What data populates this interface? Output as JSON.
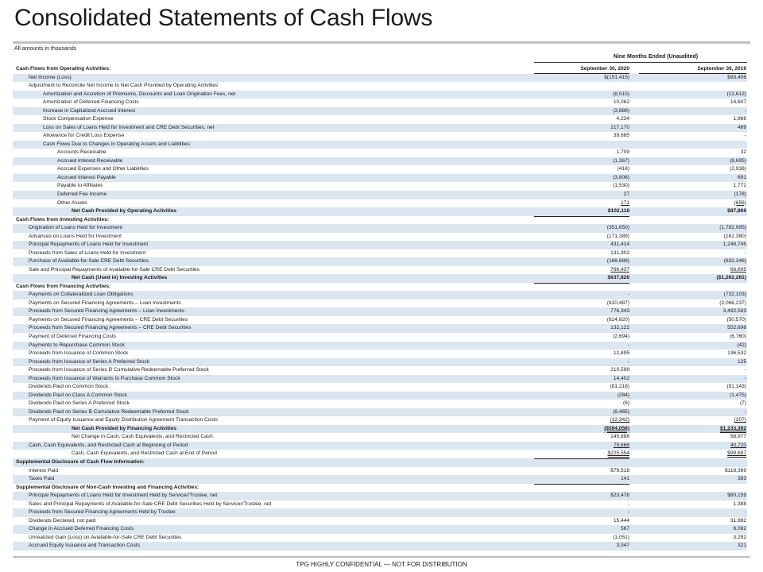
{
  "title": "Consolidated Statements of Cash Flows",
  "note": "All amounts in thousands",
  "period_header": "Nine Months Ended  (Unaudited)",
  "footer": "TPG HIGHLY CONFIDENTIAL — NOT FOR DISTRIBUTION",
  "rows": [
    {
      "label": "Cash Flows from Operating Activities:",
      "c1": "September 30, 2020",
      "c2": "September 30, 2019",
      "indent": 0,
      "style": "hdrcol"
    },
    {
      "label": "Net Income (Loss)",
      "c1": "$(151,415)",
      "c2": "$93,406",
      "indent": 1
    },
    {
      "label": "Adjustment to Reconcile Net Income to Net Cash Provided by Operating Activities:",
      "c1": "",
      "c2": "",
      "indent": 1
    },
    {
      "label": "Amortization and Accretion of Premiums, Discounts and Loan Origination Fees, net",
      "c1": "(8,515)",
      "c2": "(12,612)",
      "indent": 2
    },
    {
      "label": "Amortization of Deferred Financing Costs",
      "c1": "10,062",
      "c2": "14,607",
      "indent": 2
    },
    {
      "label": "Increase in Capitalized Accrued Interest",
      "c1": "(3,889)",
      "c2": "-",
      "indent": 2
    },
    {
      "label": "Stock Compensation Expense",
      "c1": "4,234",
      "c2": "1,966",
      "indent": 2
    },
    {
      "label": "Loss on Sales of Loans Held for Investment and CRE Debt Securities, net",
      "c1": "217,170",
      "c2": "469",
      "indent": 2
    },
    {
      "label": "Allowance for Credit Loss Expense",
      "c1": "39,685",
      "c2": "-",
      "indent": 2
    },
    {
      "label": "Cash Flows Due to Changes in Operating Assets and Liabilities:",
      "c1": "",
      "c2": "",
      "indent": 2
    },
    {
      "label": "Accounts Receivable",
      "c1": "1,709",
      "c2": "32",
      "indent": 3
    },
    {
      "label": "Accrued Interest Receivable",
      "c1": "(1,367)",
      "c2": "(8,695)",
      "indent": 3
    },
    {
      "label": "Accrued Expenses and Other Liabilities",
      "c1": "(416)",
      "c2": "(2,936)",
      "indent": 3
    },
    {
      "label": "Accrued Interest Payable",
      "c1": "(3,808)",
      "c2": "691",
      "indent": 3
    },
    {
      "label": "Payable to Affiliates",
      "c1": "(1,530)",
      "c2": "1,772",
      "indent": 3
    },
    {
      "label": "Deferred Fee Income",
      "c1": "27",
      "c2": "(178)",
      "indent": 3
    },
    {
      "label": "Other Assets",
      "c1": "171",
      "c2": "(656)",
      "indent": 3,
      "style": "u"
    },
    {
      "label": "Net Cash Provided by Operating Activities",
      "c1": "$102,118",
      "c2": "$87,866",
      "indent": 4,
      "style": "bold"
    },
    {
      "label": "Cash Flows from Investing Activities:",
      "c1": "",
      "c2": "",
      "indent": 0,
      "style": "header"
    },
    {
      "label": "Origination of Loans Held for Investment",
      "c1": "(351,650)",
      "c2": "(1,782,995)",
      "indent": 1
    },
    {
      "label": "Advances on Loans Held for Investment",
      "c1": "(171,389)",
      "c2": "(162,380)",
      "indent": 1
    },
    {
      "label": "Principal Repayments of Loans Held for Investment",
      "c1": "431,414",
      "c2": "1,248,745",
      "indent": 1
    },
    {
      "label": "Proceeds from Sales of Loans Held for Investment",
      "c1": "131,902",
      "c2": "-",
      "indent": 1
    },
    {
      "label": "Purchase of Available-for-Sale CRE Debt Securities",
      "c1": "(168,888)",
      "c2": "(632,346)",
      "indent": 1
    },
    {
      "label": "Sale and Principal Repayments of Available-for-Sale CRE Debt Securities",
      "c1": "766,437",
      "c2": "66,695",
      "indent": 1,
      "style": "u"
    },
    {
      "label": "Net Cash (Used in) Investing Activities",
      "c1": "$637,826",
      "c2": "($1,262,281)",
      "indent": 4,
      "style": "bold"
    },
    {
      "label": "Cash Flows from Financing Activities:",
      "c1": "",
      "c2": "",
      "indent": 0,
      "style": "header"
    },
    {
      "label": "Payments on Collateralized Loan Obligations",
      "c1": "-",
      "c2": "(732,103)",
      "indent": 1
    },
    {
      "label": "Payments on Secured Financing Agreements – Loan Investments",
      "c1": "(810,487)",
      "c2": "(2,066,237)",
      "indent": 1
    },
    {
      "label": "Proceeds from Secured Financing Agreements – Loan Investments",
      "c1": "776,343",
      "c2": "3,492,583",
      "indent": 1
    },
    {
      "label": "Payments on Secured Financing Agreements – CRE Debt Securities",
      "c1": "(824,920)",
      "c2": "(50,570)",
      "indent": 1
    },
    {
      "label": "Proceeds from Secured Financing Agreements – CRE Debt Securities",
      "c1": "132,122",
      "c2": "552,696",
      "indent": 1
    },
    {
      "label": "Payment of Deferred Financing Costs",
      "c1": "(2,694)",
      "c2": "(6,760)",
      "indent": 1
    },
    {
      "label": "Payments to Repurchase Common Stock",
      "c1": "-",
      "c2": "(42)",
      "indent": 1
    },
    {
      "label": "Proceeds from Issuance of Common Stock",
      "c1": "12,895",
      "c2": "136,532",
      "indent": 1
    },
    {
      "label": "Proceeds from Issuance of Series A Preferred Stock",
      "c1": "-",
      "c2": "125",
      "indent": 1
    },
    {
      "label": "Proceeds from Issuance of Series B Cumulative Redeemable Preferred Stock",
      "c1": "210,598",
      "c2": "-",
      "indent": 1
    },
    {
      "label": "Proceeds from Issuance of Warrants to Purchase Common Stock",
      "c1": "14,402",
      "c2": "-",
      "indent": 1
    },
    {
      "label": "Dividends Paid on Common Stock",
      "c1": "(81,218)",
      "c2": "(91,143)",
      "indent": 1
    },
    {
      "label": "Dividends Paid on Class A Common Stock",
      "c1": "(284)",
      "c2": "(1,475)",
      "indent": 1
    },
    {
      "label": "Dividends Paid on Series A Preferred Stock",
      "c1": "(6)",
      "c2": "(7)",
      "indent": 1
    },
    {
      "label": "Dividends Paid on Series B Cumulative Redeemable Preferred Stock",
      "c1": "(8,465)",
      "c2": "-",
      "indent": 1
    },
    {
      "label": "Payment of Equity Issuance and Equity Distribution Agreement Transaction Costs",
      "c1": "(12,342)",
      "c2": "(207)",
      "indent": 1,
      "style": "u"
    },
    {
      "label": "Net Cash Provided by Financing Activities",
      "c1": "($594,056)",
      "c2": "$1,233,392",
      "indent": 4,
      "style": "bold uu"
    },
    {
      "label": "Net Change in Cash, Cash Equivalents, and Restricted Cash",
      "c1": "145,888",
      "c2": "58,977",
      "indent": 4
    },
    {
      "label": "Cash, Cash Equivalents, and Restricted Cash at Beginning of Period",
      "c1": "79,666",
      "c2": "40,720",
      "indent": 1,
      "style": "u"
    },
    {
      "label": "Cash, Cash Equivalents, and Restricted Cash at End of Period",
      "c1": "$225,554",
      "c2": "$99,697",
      "indent": 4,
      "style": "uu"
    },
    {
      "label": "Supplemental Disclosure of Cash Flow Information:",
      "c1": "",
      "c2": "",
      "indent": 0,
      "style": "header"
    },
    {
      "label": "Interest Paid",
      "c1": "$79,518",
      "c2": "$118,369",
      "indent": 1
    },
    {
      "label": "Taxes Paid",
      "c1": "141",
      "c2": "393",
      "indent": 1
    },
    {
      "label": "Supplemental Disclosure of Non-Cash Investing and Financing Activities:",
      "c1": "",
      "c2": "",
      "indent": 0,
      "style": "header"
    },
    {
      "label": "Principal Repayments of Loans Held for Investment Held by Servicer/Trustee, net",
      "c1": "$23,478",
      "c2": "$80,159",
      "indent": 1
    },
    {
      "label": "Sales and Principal Repayments of Available-for-Sale CRE Debt Securities Held by Servicer/Trustee, net",
      "c1": "-",
      "c2": "1,388",
      "indent": 1
    },
    {
      "label": "Proceeds from Secured Financing Agreements Held by Trustee",
      "c1": "-",
      "c2": "-",
      "indent": 1
    },
    {
      "label": "Dividends Declared, not paid",
      "c1": "15,444",
      "c2": "31,982",
      "indent": 1
    },
    {
      "label": "Change in Accrued Deferred Financing Costs",
      "c1": "567",
      "c2": "6,082",
      "indent": 1
    },
    {
      "label": "Unrealized Gain (Loss) on Available-for-Sale CRE Debt Securities",
      "c1": "(1,051)",
      "c2": "3,292",
      "indent": 1
    },
    {
      "label": "Accrued Equity Issuance and Transaction Costs",
      "c1": "3,047",
      "c2": "321",
      "indent": 1
    }
  ]
}
